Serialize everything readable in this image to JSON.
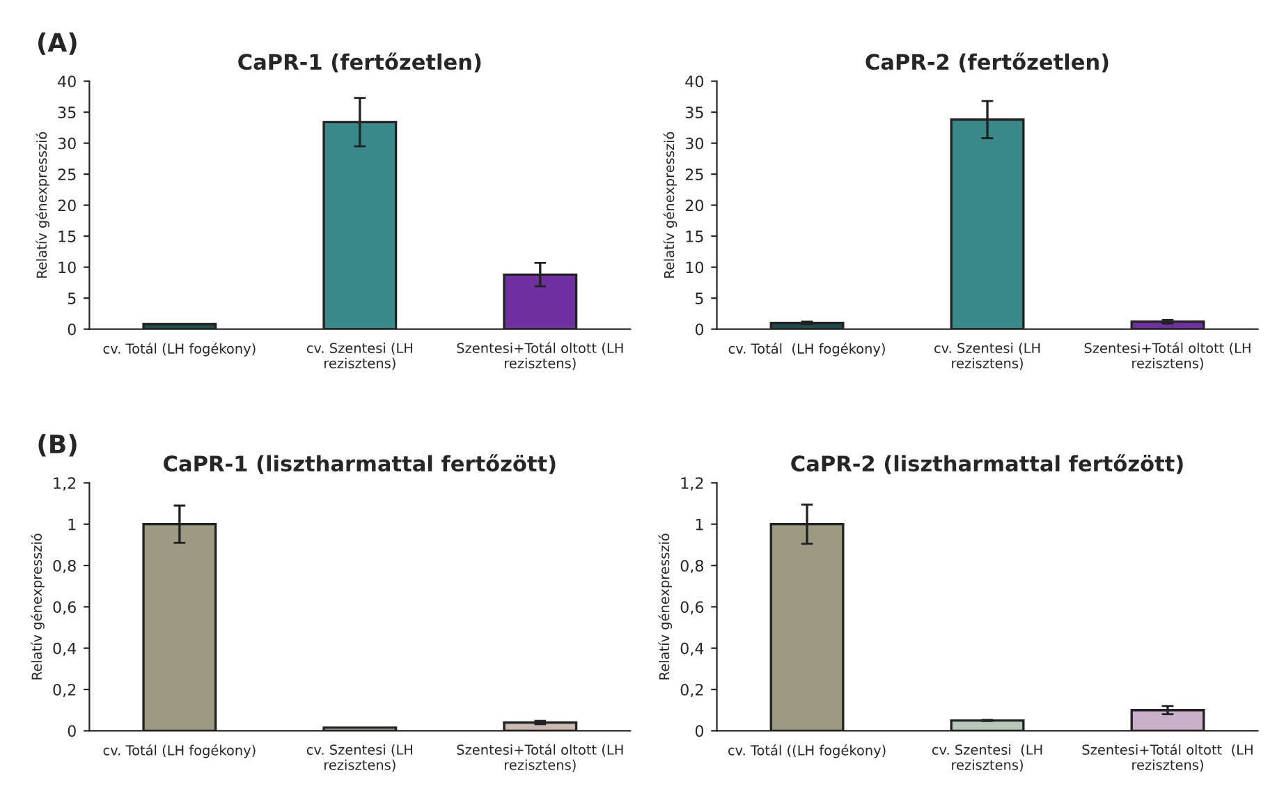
{
  "chart_data": [
    {
      "type": "bar",
      "title": "CaPR-1 (fertőzetlen)",
      "ylabel": "Relatív génexpresszió",
      "annotations": [
        "(A)"
      ],
      "categories": [
        "cv. Totál (LH fogékony)",
        "cv. Szentesi (LH\nrezisztens)",
        "Szentesi+Totál oltott (LH\nrezisztens)"
      ],
      "values": [
        0.8,
        33.4,
        8.8
      ],
      "errors": [
        null,
        3.9,
        1.9
      ],
      "colors": [
        "#1e4d4d",
        "#3a8a8c",
        "#7030a0"
      ],
      "ylim": [
        0,
        40
      ],
      "yticks": [
        0,
        5,
        10,
        15,
        20,
        25,
        30,
        35,
        40
      ],
      "grid": false,
      "legend": false
    },
    {
      "type": "bar",
      "title": "CaPR-2 (fertőzetlen)",
      "ylabel": "Relatív génexpresszió",
      "categories": [
        "cv. Totál  (LH fogékony)",
        "cv. Szentesi (LH\nrezisztens)",
        "Szentesi+Totál oltott (LH\nrezisztens)"
      ],
      "values": [
        1,
        33.8,
        1.2
      ],
      "errors": [
        0.2,
        3,
        0.3
      ],
      "colors": [
        "#1e4d4d",
        "#3a8a8c",
        "#7030a0"
      ],
      "ylim": [
        0,
        40
      ],
      "yticks": [
        0,
        5,
        10,
        15,
        20,
        25,
        30,
        35,
        40
      ],
      "grid": false,
      "legend": false
    },
    {
      "type": "bar",
      "title": "CaPR-1 (lisztharmattal fertőzött)",
      "ylabel": "Relatív génexpresszió",
      "annotations": [
        "(B)"
      ],
      "categories": [
        "cv. Totál (LH fogékony)",
        "cv. Szentesi (LH\nrezisztens)",
        "Szentesi+Totál oltott (LH\nrezisztens)"
      ],
      "values": [
        1,
        0.015,
        0.04
      ],
      "errors": [
        0.09,
        null,
        0.008
      ],
      "colors": [
        "#9c9a80",
        "#b8c0a8",
        "#c8b8b0"
      ],
      "ylim": [
        0,
        1.2
      ],
      "yticks": [
        {
          "value": 0,
          "label": "0"
        },
        {
          "value": 0.2,
          "label": "0,2"
        },
        {
          "value": 0.4,
          "label": "0,4"
        },
        {
          "value": 0.6,
          "label": "0,6"
        },
        {
          "value": 0.8,
          "label": "0,8"
        },
        {
          "value": 1,
          "label": "1"
        },
        {
          "value": 1.2,
          "label": "1,2"
        }
      ],
      "grid": false,
      "legend": false
    },
    {
      "type": "bar",
      "title": "CaPR-2 (lisztharmattal fertőzött)",
      "ylabel": "Relatív génexpresszió",
      "categories": [
        "cv. Totál ((LH fogékony)",
        "cv. Szentesi  (LH\nrezisztens)",
        "Szentesi+Totál oltott  (LH\nrezisztens)"
      ],
      "values": [
        1,
        0.05,
        0.1
      ],
      "errors": [
        0.095,
        0.003,
        0.02
      ],
      "colors": [
        "#9c9a80",
        "#b8c8b8",
        "#c8b0c8"
      ],
      "ylim": [
        0,
        1.2
      ],
      "yticks": [
        {
          "value": 0,
          "label": "0"
        },
        {
          "value": 0.2,
          "label": "0,2"
        },
        {
          "value": 0.4,
          "label": "0,4"
        },
        {
          "value": 0.6,
          "label": "0,6"
        },
        {
          "value": 0.8,
          "label": "0,8"
        },
        {
          "value": 1,
          "label": "1"
        },
        {
          "value": 1.2,
          "label": "1,2"
        }
      ],
      "grid": false,
      "legend": false
    }
  ]
}
